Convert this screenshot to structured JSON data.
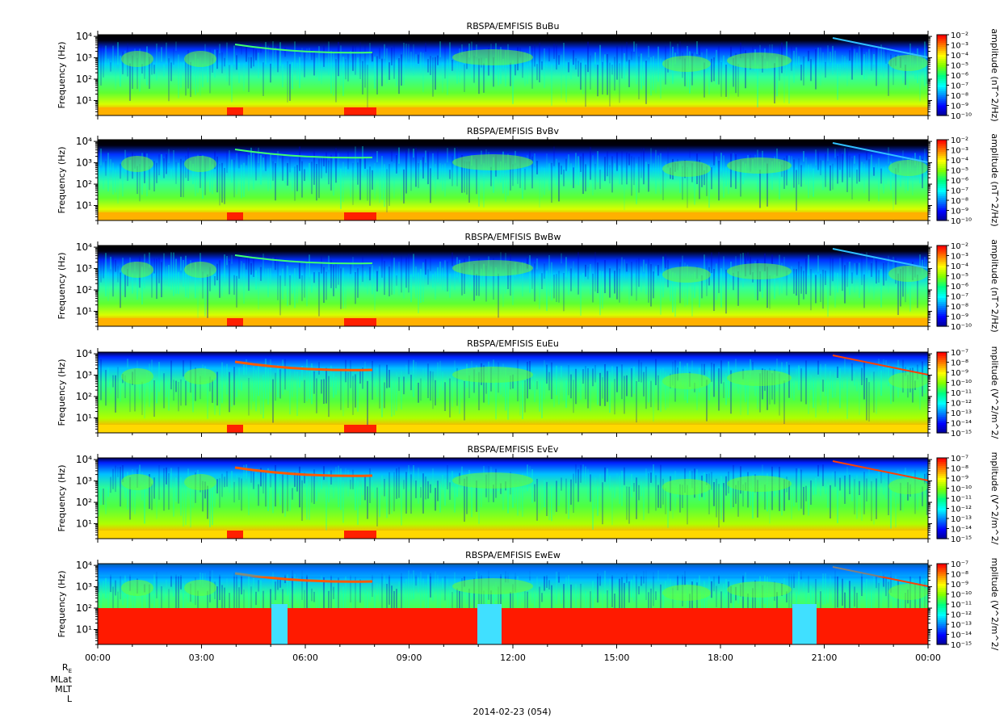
{
  "chart_data": [
    {
      "type": "heatmap",
      "title": "RBSPA/EMFISIS  BuBu",
      "ylabel": "Frequency (Hz)",
      "colorbar_label": "amplitude (nT^2/Hz)",
      "ylim_hz": [
        2,
        12000
      ],
      "y_scale": "log",
      "y_ticks": [
        "10¹",
        "10²",
        "10³",
        "10⁴"
      ],
      "colorbar_ticks": [
        "10⁻²",
        "10⁻³",
        "10⁻⁴",
        "10⁻⁵",
        "10⁻⁶",
        "10⁻⁷",
        "10⁻⁸",
        "10⁻⁹",
        "10⁻¹⁰"
      ],
      "colorbar_log_range": [
        -10,
        -2
      ]
    },
    {
      "type": "heatmap",
      "title": "RBSPA/EMFISIS  BvBv",
      "ylabel": "Frequency (Hz)",
      "colorbar_label": "amplitude (nT^2/Hz)",
      "ylim_hz": [
        2,
        12000
      ],
      "y_scale": "log",
      "y_ticks": [
        "10¹",
        "10²",
        "10³",
        "10⁴"
      ],
      "colorbar_ticks": [
        "10⁻²",
        "10⁻³",
        "10⁻⁴",
        "10⁻⁵",
        "10⁻⁶",
        "10⁻⁷",
        "10⁻⁸",
        "10⁻⁹",
        "10⁻¹⁰"
      ],
      "colorbar_log_range": [
        -10,
        -2
      ]
    },
    {
      "type": "heatmap",
      "title": "RBSPA/EMFISIS  BwBw",
      "ylabel": "Frequency (Hz)",
      "colorbar_label": "amplitude (nT^2/Hz)",
      "ylim_hz": [
        2,
        12000
      ],
      "y_scale": "log",
      "y_ticks": [
        "10¹",
        "10²",
        "10³",
        "10⁴"
      ],
      "colorbar_ticks": [
        "10⁻²",
        "10⁻³",
        "10⁻⁴",
        "10⁻⁵",
        "10⁻⁶",
        "10⁻⁷",
        "10⁻⁸",
        "10⁻⁹",
        "10⁻¹⁰"
      ],
      "colorbar_log_range": [
        -10,
        -2
      ]
    },
    {
      "type": "heatmap",
      "title": "RBSPA/EMFISIS  EuEu",
      "ylabel": "Frequency (Hz)",
      "colorbar_label": "mplitude (V^2/m^2/",
      "ylim_hz": [
        2,
        12000
      ],
      "y_scale": "log",
      "y_ticks": [
        "10¹",
        "10²",
        "10³",
        "10⁴"
      ],
      "colorbar_ticks": [
        "10⁻⁷",
        "10⁻⁸",
        "10⁻⁹",
        "10⁻¹⁰",
        "10⁻¹¹",
        "10⁻¹²",
        "10⁻¹³",
        "10⁻¹⁴",
        "10⁻¹⁵"
      ],
      "colorbar_log_range": [
        -15,
        -7
      ]
    },
    {
      "type": "heatmap",
      "title": "RBSPA/EMFISIS  EvEv",
      "ylabel": "Frequency (Hz)",
      "colorbar_label": "mplitude (V^2/m^2/",
      "ylim_hz": [
        2,
        12000
      ],
      "y_scale": "log",
      "y_ticks": [
        "10¹",
        "10²",
        "10³",
        "10⁴"
      ],
      "colorbar_ticks": [
        "10⁻⁷",
        "10⁻⁸",
        "10⁻⁹",
        "10⁻¹⁰",
        "10⁻¹¹",
        "10⁻¹²",
        "10⁻¹³",
        "10⁻¹⁴",
        "10⁻¹⁵"
      ],
      "colorbar_log_range": [
        -15,
        -7
      ]
    },
    {
      "type": "heatmap",
      "title": "RBSPA/EMFISIS  EwEw",
      "ylabel": "Frequency (Hz)",
      "colorbar_label": "mplitude (V^2/m^2/",
      "ylim_hz": [
        2,
        12000
      ],
      "y_scale": "log",
      "y_ticks": [
        "10¹",
        "10²",
        "10³",
        "10⁴"
      ],
      "colorbar_ticks": [
        "10⁻⁷",
        "10⁻⁸",
        "10⁻⁹",
        "10⁻¹⁰",
        "10⁻¹¹",
        "10⁻¹²",
        "10⁻¹³",
        "10⁻¹⁴",
        "10⁻¹⁵"
      ],
      "colorbar_log_range": [
        -15,
        -7
      ]
    }
  ],
  "x_axis": {
    "range_hours": [
      0,
      24
    ],
    "tick_hours": [
      0,
      3,
      6,
      9,
      12,
      15,
      18,
      21,
      24
    ],
    "tick_labels": [
      "00:00",
      "03:00",
      "06:00",
      "09:00",
      "12:00",
      "15:00",
      "18:00",
      "21:00",
      "00:00"
    ]
  },
  "ephemeris_labels": [
    "R",
    "MLat",
    "MLT",
    "L"
  ],
  "ephemeris_subscript": "E",
  "date_label": "2014-02-23 (054)",
  "colormap": [
    "#00008c",
    "#0000ff",
    "#0080ff",
    "#00ffff",
    "#00ff80",
    "#80ff00",
    "#ffff00",
    "#ff8000",
    "#ff0000"
  ]
}
